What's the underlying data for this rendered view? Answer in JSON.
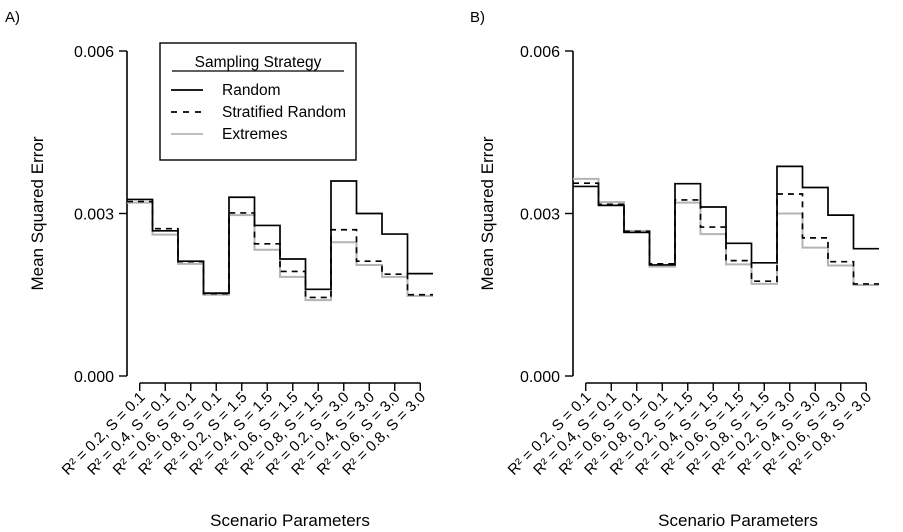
{
  "chart_data": [
    {
      "type": "line",
      "panel_label": "A)",
      "xlabel": "Scenario Parameters",
      "ylabel": "Mean Squared Error",
      "ylim": [
        0,
        0.006
      ],
      "y_ticks": [
        "0.000",
        "0.003",
        "0.006"
      ],
      "categories": [
        "R² = 0.2, S = 0.1",
        "R² = 0.4, S = 0.1",
        "R² = 0.6, S = 0.1",
        "R² = 0.8, S = 0.1",
        "R² = 0.2, S = 1.5",
        "R² = 0.4, S = 1.5",
        "R² = 0.6, S = 1.5",
        "R² = 0.8, S = 1.5",
        "R² = 0.2, S = 3.0",
        "R² = 0.4, S = 3.0",
        "R² = 0.6, S = 3.0",
        "R² = 0.8, S = 3.0"
      ],
      "legend": {
        "title": "Sampling Strategy",
        "placement": "top-left"
      },
      "series": [
        {
          "name": "Random",
          "color": "#000000",
          "dash": "solid",
          "values": [
            0.00326,
            0.00268,
            0.00212,
            0.00153,
            0.0033,
            0.00278,
            0.00216,
            0.0016,
            0.0036,
            0.003,
            0.00262,
            0.00189
          ]
        },
        {
          "name": "Stratified Random",
          "color": "#000000",
          "dash": "dashed",
          "values": [
            0.00322,
            0.00272,
            0.00211,
            0.00152,
            0.00301,
            0.00244,
            0.00193,
            0.00145,
            0.0027,
            0.00212,
            0.00188,
            0.0015
          ]
        },
        {
          "name": "Extremes",
          "color": "#b4b4b4",
          "dash": "solid",
          "values": [
            0.0032,
            0.00261,
            0.00207,
            0.0015,
            0.00297,
            0.00233,
            0.00183,
            0.0014,
            0.00247,
            0.00205,
            0.00183,
            0.00148
          ]
        }
      ]
    },
    {
      "type": "line",
      "panel_label": "B)",
      "xlabel": "Scenario Parameters",
      "ylabel": "Mean Squared Error",
      "ylim": [
        0,
        0.006
      ],
      "y_ticks": [
        "0.000",
        "0.003",
        "0.006"
      ],
      "categories": [
        "R² = 0.2, S = 0.1",
        "R² = 0.4, S = 0.1",
        "R² = 0.6, S = 0.1",
        "R² = 0.8, S = 0.1",
        "R² = 0.2, S = 1.5",
        "R² = 0.4, S = 1.5",
        "R² = 0.6, S = 1.5",
        "R² = 0.8, S = 1.5",
        "R² = 0.2, S = 3.0",
        "R² = 0.4, S = 3.0",
        "R² = 0.6, S = 3.0",
        "R² = 0.8, S = 3.0"
      ],
      "series": [
        {
          "name": "Random",
          "color": "#000000",
          "dash": "solid",
          "values": [
            0.0035,
            0.00315,
            0.00265,
            0.00205,
            0.00355,
            0.00312,
            0.00245,
            0.00209,
            0.00387,
            0.00348,
            0.00297,
            0.00235
          ]
        },
        {
          "name": "Stratified Random",
          "color": "#000000",
          "dash": "dashed",
          "values": [
            0.00356,
            0.00317,
            0.00267,
            0.00207,
            0.00325,
            0.00275,
            0.00213,
            0.00175,
            0.00336,
            0.00255,
            0.00211,
            0.0017
          ]
        },
        {
          "name": "Extremes",
          "color": "#b4b4b4",
          "dash": "solid",
          "values": [
            0.00364,
            0.00321,
            0.00268,
            0.00202,
            0.0032,
            0.00262,
            0.00206,
            0.0017,
            0.003,
            0.00237,
            0.00204,
            0.00168
          ]
        }
      ]
    }
  ]
}
